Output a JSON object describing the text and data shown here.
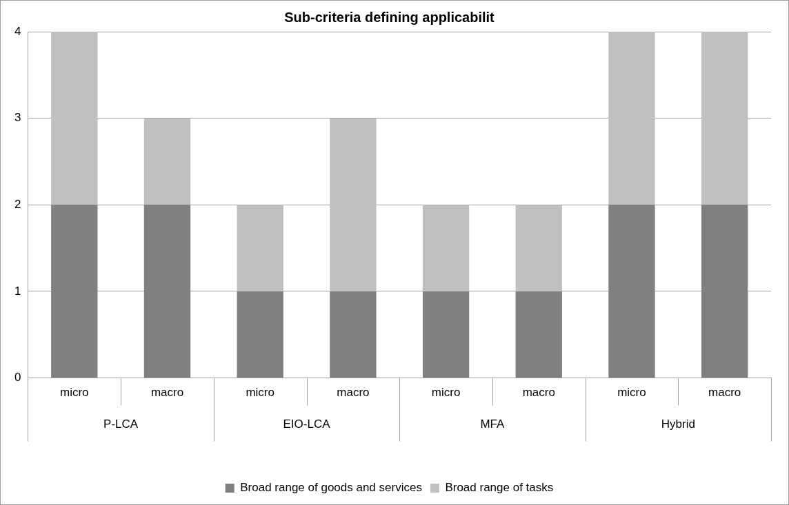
{
  "chart_data": {
    "type": "bar",
    "title": "Sub-criteria defining applicabilit",
    "stacked": true,
    "categories": [
      "micro",
      "macro",
      "micro",
      "macro",
      "micro",
      "macro",
      "micro",
      "macro"
    ],
    "annotations": [
      "P-LCA",
      "EIO-LCA",
      "MFA",
      "Hybrid"
    ],
    "series": [
      {
        "name": "Broad range of goods and services",
        "color": "#808080",
        "values": [
          2,
          2,
          1,
          1,
          1,
          1,
          2,
          2
        ]
      },
      {
        "name": "Broad range of tasks",
        "color": "#c0c0c0",
        "values": [
          2,
          1,
          1,
          2,
          1,
          1,
          2,
          2
        ]
      }
    ],
    "ylim": [
      0,
      4
    ],
    "yticks": [
      0,
      1,
      2,
      3,
      4
    ],
    "grid": "y",
    "legend": "bottom"
  }
}
